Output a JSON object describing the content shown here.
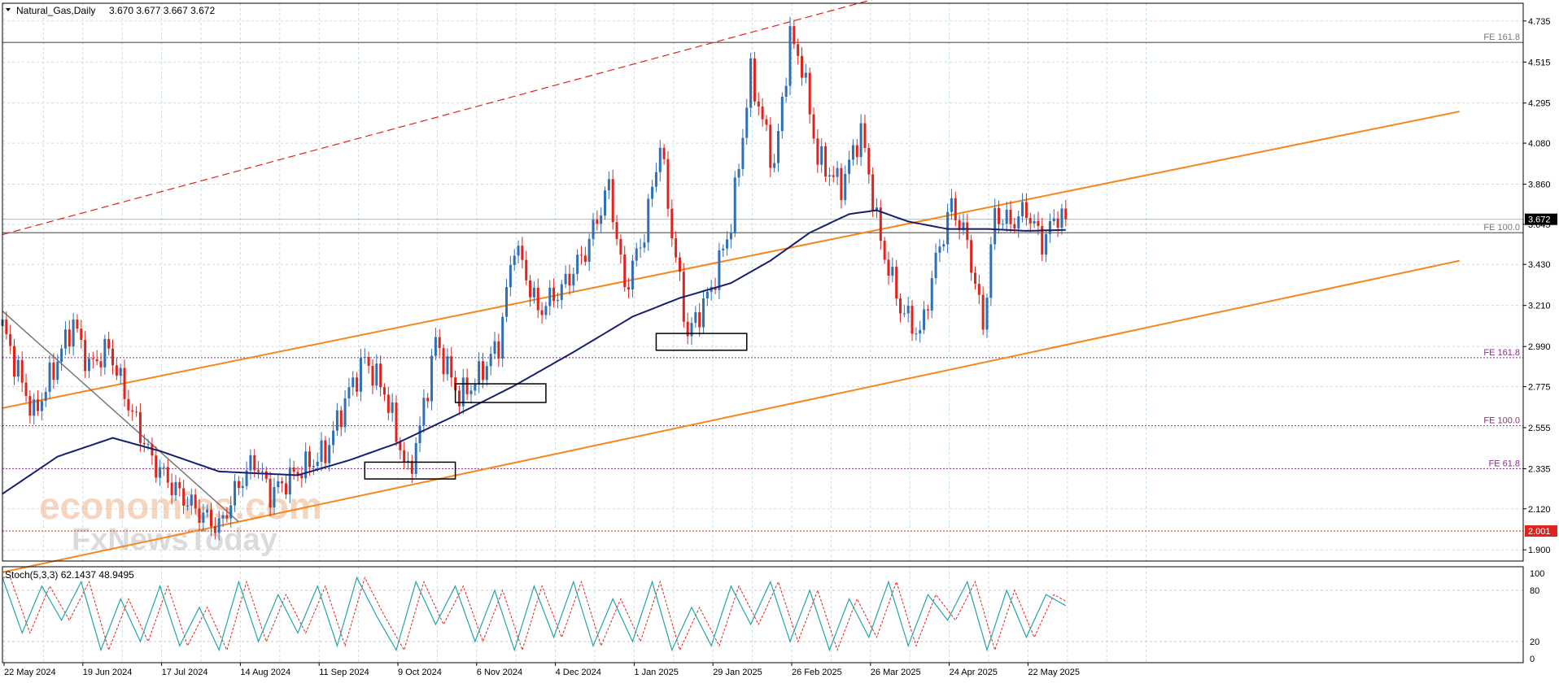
{
  "header": {
    "symbol": "Natural_Gas,Daily",
    "ohlc": "3.670 3.677 3.667 3.672"
  },
  "colors": {
    "bull": "#2f6fb5",
    "bear": "#e0231c",
    "ma": "#16206e",
    "channel": "#f7861c",
    "dashed_channel": "#e0231c",
    "stoch_main": "#23a5a5",
    "stoch_signal": "#e0231c",
    "fib_upper": "#555555",
    "fib_lower": "#8e2a8e",
    "grid": "#c9dcdc"
  },
  "price_axis": {
    "ticks": [
      "4.735",
      "4.515",
      "4.295",
      "4.080",
      "3.860",
      "3.645",
      "3.430",
      "3.210",
      "2.990",
      "2.775",
      "2.555",
      "2.335",
      "2.120",
      "1.900"
    ],
    "tick_values": [
      4.735,
      4.515,
      4.295,
      4.08,
      3.86,
      3.645,
      3.43,
      3.21,
      2.99,
      2.775,
      2.555,
      2.335,
      2.12,
      1.9
    ],
    "current_label": "3.672",
    "current_value": 3.672,
    "low_label": "2.001",
    "low_value": 2.001
  },
  "stoch_axis": {
    "ticks": [
      "100",
      "80",
      "20",
      "0"
    ],
    "tick_values": [
      100,
      80,
      20,
      0
    ]
  },
  "date_axis": {
    "labels": [
      "22 May 2024",
      "19 Jun 2024",
      "17 Jul 2024",
      "14 Aug 2024",
      "11 Sep 2024",
      "9 Oct 2024",
      "6 Nov 2024",
      "4 Dec 2024",
      "1 Jan 2025",
      "29 Jan 2025",
      "26 Feb 2025",
      "26 Mar 2025",
      "24 Apr 2025",
      "22 May 2025"
    ]
  },
  "fib_levels": [
    {
      "label": "FE 161.8",
      "value": 4.62,
      "group": "upper"
    },
    {
      "label": "FE 100.0",
      "value": 3.6,
      "group": "upper"
    },
    {
      "label": "FE 161.8",
      "value": 2.93,
      "group": "lower"
    },
    {
      "label": "FE 100.0",
      "value": 2.565,
      "group": "lower"
    },
    {
      "label": "FE 61.8",
      "value": 2.335,
      "group": "lower"
    }
  ],
  "stoch": {
    "title": "Stoch(5,3,3) 62.1437 48.9495"
  },
  "watermark": {
    "line1": "economies.com",
    "line2": "FxNewsToday"
  },
  "chart_data": {
    "type": "candlestick",
    "title": "Natural_Gas,Daily",
    "ylim": [
      1.84,
      4.83
    ],
    "stoch_ylim": [
      0,
      100
    ],
    "period_start": "2024-05-22",
    "bars_per_label": 20,
    "total_bars": 271,
    "price_path": [
      {
        "bar": 0,
        "price": 3.1
      },
      {
        "bar": 4,
        "price": 2.85
      },
      {
        "bar": 8,
        "price": 2.62
      },
      {
        "bar": 14,
        "price": 2.92
      },
      {
        "bar": 18,
        "price": 3.12
      },
      {
        "bar": 22,
        "price": 2.88
      },
      {
        "bar": 27,
        "price": 2.98
      },
      {
        "bar": 32,
        "price": 2.68
      },
      {
        "bar": 38,
        "price": 2.38
      },
      {
        "bar": 44,
        "price": 2.22
      },
      {
        "bar": 50,
        "price": 2.1
      },
      {
        "bar": 55,
        "price": 2.02
      },
      {
        "bar": 60,
        "price": 2.25
      },
      {
        "bar": 64,
        "price": 2.38
      },
      {
        "bar": 68,
        "price": 2.2
      },
      {
        "bar": 75,
        "price": 2.32
      },
      {
        "bar": 82,
        "price": 2.42
      },
      {
        "bar": 88,
        "price": 2.75
      },
      {
        "bar": 92,
        "price": 2.92
      },
      {
        "bar": 97,
        "price": 2.75
      },
      {
        "bar": 103,
        "price": 2.3
      },
      {
        "bar": 106,
        "price": 2.55
      },
      {
        "bar": 110,
        "price": 3.02
      },
      {
        "bar": 116,
        "price": 2.72
      },
      {
        "bar": 120,
        "price": 2.8
      },
      {
        "bar": 126,
        "price": 3.0
      },
      {
        "bar": 130,
        "price": 3.55
      },
      {
        "bar": 136,
        "price": 3.18
      },
      {
        "bar": 142,
        "price": 3.3
      },
      {
        "bar": 148,
        "price": 3.5
      },
      {
        "bar": 154,
        "price": 3.85
      },
      {
        "bar": 158,
        "price": 3.3
      },
      {
        "bar": 163,
        "price": 3.6
      },
      {
        "bar": 167,
        "price": 4.08
      },
      {
        "bar": 170,
        "price": 3.6
      },
      {
        "bar": 174,
        "price": 3.05
      },
      {
        "bar": 180,
        "price": 3.3
      },
      {
        "bar": 185,
        "price": 3.65
      },
      {
        "bar": 190,
        "price": 4.45
      },
      {
        "bar": 196,
        "price": 3.95
      },
      {
        "bar": 200,
        "price": 4.65
      },
      {
        "bar": 203,
        "price": 4.5
      },
      {
        "bar": 207,
        "price": 4.0
      },
      {
        "bar": 213,
        "price": 3.85
      },
      {
        "bar": 218,
        "price": 4.15
      },
      {
        "bar": 223,
        "price": 3.55
      },
      {
        "bar": 228,
        "price": 3.2
      },
      {
        "bar": 233,
        "price": 3.05
      },
      {
        "bar": 237,
        "price": 3.45
      },
      {
        "bar": 241,
        "price": 3.75
      },
      {
        "bar": 245,
        "price": 3.55
      },
      {
        "bar": 249,
        "price": 3.1
      },
      {
        "bar": 252,
        "price": 3.7
      },
      {
        "bar": 256,
        "price": 3.65
      },
      {
        "bar": 260,
        "price": 3.72
      },
      {
        "bar": 264,
        "price": 3.55
      },
      {
        "bar": 268,
        "price": 3.7
      },
      {
        "bar": 270,
        "price": 3.672
      }
    ],
    "ma_path": [
      {
        "bar": 0,
        "value": 2.2
      },
      {
        "bar": 14,
        "value": 2.4
      },
      {
        "bar": 28,
        "value": 2.5
      },
      {
        "bar": 40,
        "value": 2.43
      },
      {
        "bar": 55,
        "value": 2.32
      },
      {
        "bar": 75,
        "value": 2.3
      },
      {
        "bar": 88,
        "value": 2.38
      },
      {
        "bar": 100,
        "value": 2.47
      },
      {
        "bar": 115,
        "value": 2.62
      },
      {
        "bar": 130,
        "value": 2.78
      },
      {
        "bar": 145,
        "value": 2.96
      },
      {
        "bar": 160,
        "value": 3.15
      },
      {
        "bar": 172,
        "value": 3.25
      },
      {
        "bar": 185,
        "value": 3.33
      },
      {
        "bar": 195,
        "value": 3.45
      },
      {
        "bar": 205,
        "value": 3.6
      },
      {
        "bar": 215,
        "value": 3.7
      },
      {
        "bar": 222,
        "value": 3.72
      },
      {
        "bar": 230,
        "value": 3.66
      },
      {
        "bar": 240,
        "value": 3.62
      },
      {
        "bar": 250,
        "value": 3.62
      },
      {
        "bar": 260,
        "value": 3.61
      },
      {
        "bar": 270,
        "value": 3.615
      }
    ],
    "channels": [
      {
        "name": "",
        "style": "solid",
        "color": "orange",
        "from": {
          "bar": 0,
          "price": 2.66
        },
        "to": {
          "bar": 370,
          "price": 4.25
        }
      },
      {
        "name": "",
        "style": "solid",
        "color": "orange",
        "from": {
          "bar": 0,
          "price": 1.78
        },
        "to": {
          "bar": 370,
          "price": 3.45
        }
      },
      {
        "name": "",
        "style": "dashed",
        "color": "red",
        "from": {
          "bar": 0,
          "price": 3.59
        },
        "to": {
          "bar": 370,
          "price": 5.7
        }
      },
      {
        "name": "",
        "style": "solid",
        "color": "gray",
        "from": {
          "bar": 0,
          "price": 3.18
        },
        "to": {
          "bar": 60,
          "price": 2.05
        }
      }
    ],
    "boxes": [
      {
        "from": {
          "bar": 92,
          "price": 2.37
        },
        "to": {
          "bar": 115,
          "price": 2.28
        }
      },
      {
        "from": {
          "bar": 115,
          "price": 2.79
        },
        "to": {
          "bar": 138,
          "price": 2.69
        }
      },
      {
        "from": {
          "bar": 166,
          "price": 3.06
        },
        "to": {
          "bar": 189,
          "price": 2.97
        }
      }
    ],
    "stoch_path": [
      {
        "bar": 0,
        "k": 95
      },
      {
        "bar": 5,
        "k": 30
      },
      {
        "bar": 10,
        "k": 85
      },
      {
        "bar": 15,
        "k": 45
      },
      {
        "bar": 20,
        "k": 90
      },
      {
        "bar": 25,
        "k": 10
      },
      {
        "bar": 30,
        "k": 70
      },
      {
        "bar": 35,
        "k": 20
      },
      {
        "bar": 40,
        "k": 85
      },
      {
        "bar": 45,
        "k": 15
      },
      {
        "bar": 50,
        "k": 60
      },
      {
        "bar": 55,
        "k": 10
      },
      {
        "bar": 60,
        "k": 90
      },
      {
        "bar": 65,
        "k": 20
      },
      {
        "bar": 70,
        "k": 75
      },
      {
        "bar": 75,
        "k": 30
      },
      {
        "bar": 80,
        "k": 85
      },
      {
        "bar": 85,
        "k": 15
      },
      {
        "bar": 90,
        "k": 95
      },
      {
        "bar": 95,
        "k": 50
      },
      {
        "bar": 100,
        "k": 10
      },
      {
        "bar": 105,
        "k": 90
      },
      {
        "bar": 110,
        "k": 40
      },
      {
        "bar": 115,
        "k": 85
      },
      {
        "bar": 120,
        "k": 20
      },
      {
        "bar": 125,
        "k": 80
      },
      {
        "bar": 130,
        "k": 10
      },
      {
        "bar": 135,
        "k": 85
      },
      {
        "bar": 140,
        "k": 25
      },
      {
        "bar": 145,
        "k": 90
      },
      {
        "bar": 150,
        "k": 15
      },
      {
        "bar": 155,
        "k": 70
      },
      {
        "bar": 160,
        "k": 20
      },
      {
        "bar": 165,
        "k": 90
      },
      {
        "bar": 170,
        "k": 10
      },
      {
        "bar": 175,
        "k": 60
      },
      {
        "bar": 180,
        "k": 15
      },
      {
        "bar": 185,
        "k": 85
      },
      {
        "bar": 190,
        "k": 40
      },
      {
        "bar": 195,
        "k": 90
      },
      {
        "bar": 200,
        "k": 20
      },
      {
        "bar": 205,
        "k": 80
      },
      {
        "bar": 210,
        "k": 10
      },
      {
        "bar": 215,
        "k": 70
      },
      {
        "bar": 220,
        "k": 25
      },
      {
        "bar": 225,
        "k": 90
      },
      {
        "bar": 230,
        "k": 15
      },
      {
        "bar": 235,
        "k": 75
      },
      {
        "bar": 240,
        "k": 45
      },
      {
        "bar": 245,
        "k": 90
      },
      {
        "bar": 250,
        "k": 10
      },
      {
        "bar": 255,
        "k": 80
      },
      {
        "bar": 260,
        "k": 25
      },
      {
        "bar": 265,
        "k": 75
      },
      {
        "bar": 270,
        "k": 62
      }
    ]
  }
}
